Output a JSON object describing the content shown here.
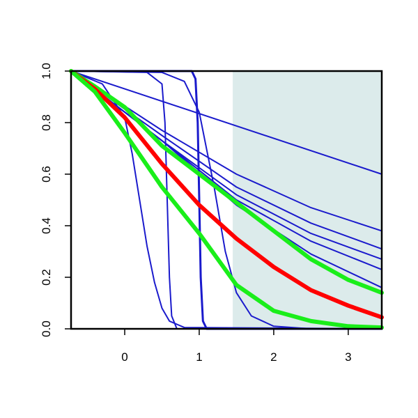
{
  "chart_data": {
    "type": "line",
    "title": "",
    "xlabel": "",
    "ylabel": "",
    "xlim": [
      -0.72,
      3.45
    ],
    "ylim": [
      0,
      1
    ],
    "x_ticks": [
      0,
      1,
      2,
      3
    ],
    "x_tick_labels": [
      "0",
      "1",
      "2",
      "3"
    ],
    "y_ticks": [
      0,
      0.2,
      0.4,
      0.6,
      0.8,
      1
    ],
    "y_tick_labels": [
      "0.0",
      "0.2",
      "0.4",
      "0.6",
      "0.8",
      "1.0"
    ],
    "grid": false,
    "legend": "none",
    "shaded_region": {
      "x_start": 1.45,
      "x_end": 3.45,
      "color": "#dcebeb"
    },
    "colors": {
      "blue": "#1a1acc",
      "red": "#ff0000",
      "green": "#1aee1a",
      "axis": "#000000"
    },
    "series": [
      {
        "color": "#1a1acc",
        "width": 2,
        "x": [
          -0.72,
          3.45
        ],
        "y": [
          1.0,
          0.6
        ]
      },
      {
        "color": "#1a1acc",
        "width": 2,
        "x": [
          -0.72,
          0.5,
          1.5,
          2.5,
          3.45
        ],
        "y": [
          1.0,
          0.77,
          0.6,
          0.47,
          0.38
        ]
      },
      {
        "color": "#1a1acc",
        "width": 2,
        "x": [
          -0.72,
          0.5,
          1.5,
          2.5,
          3.45
        ],
        "y": [
          1.0,
          0.75,
          0.55,
          0.41,
          0.31
        ]
      },
      {
        "color": "#1a1acc",
        "width": 2,
        "x": [
          -0.72,
          0.5,
          1.5,
          2.5,
          3.45
        ],
        "y": [
          1.0,
          0.73,
          0.52,
          0.37,
          0.27
        ]
      },
      {
        "color": "#1a1acc",
        "width": 2,
        "x": [
          -0.72,
          0.5,
          1.5,
          2.5,
          3.45
        ],
        "y": [
          1.0,
          0.73,
          0.5,
          0.34,
          0.23
        ]
      },
      {
        "color": "#1a1acc",
        "width": 2,
        "x": [
          -0.72,
          0.5,
          1.5,
          2.5,
          3.45
        ],
        "y": [
          1.0,
          0.73,
          0.48,
          0.29,
          0.16
        ]
      },
      {
        "color": "#1a1acc",
        "width": 2,
        "x": [
          -0.72,
          -0.3,
          0.0,
          0.1,
          0.2,
          0.3,
          0.4,
          0.5,
          0.6,
          0.8,
          3.45
        ],
        "y": [
          1.0,
          0.95,
          0.82,
          0.68,
          0.5,
          0.32,
          0.18,
          0.08,
          0.03,
          0.005,
          0.0
        ]
      },
      {
        "color": "#1a1acc",
        "width": 2,
        "x": [
          -0.72,
          0.3,
          0.5,
          0.54,
          0.57,
          0.6,
          0.63,
          0.7,
          3.45
        ],
        "y": [
          1.0,
          0.995,
          0.95,
          0.8,
          0.5,
          0.2,
          0.05,
          0.0,
          0.0
        ]
      },
      {
        "color": "#1a1acc",
        "width": 3,
        "x": [
          -0.72,
          0.9,
          0.95,
          0.98,
          1.0,
          1.02,
          1.05,
          1.1,
          3.45
        ],
        "y": [
          1.0,
          1.0,
          0.97,
          0.8,
          0.5,
          0.2,
          0.03,
          0.0,
          0.0
        ]
      },
      {
        "color": "#1a1acc",
        "width": 2,
        "x": [
          -0.72,
          0.5,
          0.8,
          1.0,
          1.2,
          1.35,
          1.5,
          1.7,
          2.0,
          2.5,
          3.45
        ],
        "y": [
          1.0,
          0.995,
          0.96,
          0.84,
          0.55,
          0.3,
          0.14,
          0.05,
          0.01,
          0.0,
          0.0
        ]
      },
      {
        "color": "#1aee1a",
        "width": 6,
        "x": [
          -0.72,
          -0.4,
          0.0,
          0.5,
          1.0,
          1.5,
          2.0,
          2.5,
          3.0,
          3.45
        ],
        "y": [
          1.0,
          0.94,
          0.86,
          0.71,
          0.6,
          0.49,
          0.38,
          0.27,
          0.19,
          0.14
        ]
      },
      {
        "color": "#ff0000",
        "width": 6,
        "x": [
          -0.72,
          -0.4,
          0.0,
          0.5,
          1.0,
          1.5,
          2.0,
          2.5,
          3.0,
          3.45
        ],
        "y": [
          1.0,
          0.93,
          0.82,
          0.64,
          0.48,
          0.35,
          0.24,
          0.15,
          0.09,
          0.045
        ]
      },
      {
        "color": "#1aee1a",
        "width": 6,
        "x": [
          -0.72,
          -0.4,
          0.0,
          0.5,
          1.0,
          1.5,
          2.0,
          2.5,
          3.0,
          3.45
        ],
        "y": [
          1.0,
          0.92,
          0.76,
          0.55,
          0.37,
          0.17,
          0.07,
          0.03,
          0.01,
          0.005
        ]
      }
    ]
  }
}
